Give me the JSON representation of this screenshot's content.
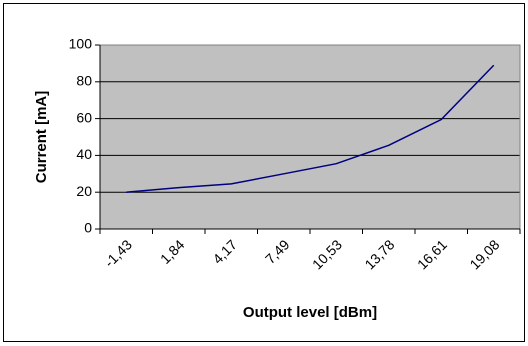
{
  "chart_data": {
    "type": "line",
    "x_label": "Output level [dBm]",
    "y_label": "Current [mA]",
    "categories": [
      "-1,43",
      "1,84",
      "4,17",
      "7,49",
      "10,53",
      "13,78",
      "16,61",
      "19,08"
    ],
    "values": [
      20,
      22.5,
      24.5,
      30,
      35.5,
      45.5,
      59.5,
      89
    ],
    "color": "#000080",
    "plot_background": "#c0c0c0",
    "ylim": [
      0,
      100
    ],
    "yticks": [
      0,
      20,
      40,
      60,
      80,
      100
    ],
    "grid": true
  }
}
